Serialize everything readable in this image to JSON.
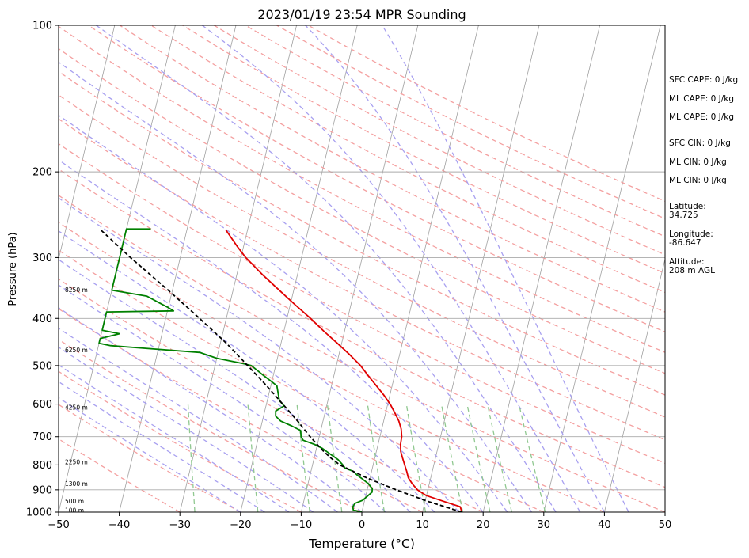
{
  "chart_data": {
    "type": "line",
    "title": "2023/01/19 23:54 MPR Sounding",
    "xlabel": "Temperature (°C)",
    "ylabel": "Pressure (hPa)",
    "xlim": [
      -50,
      50
    ],
    "ylim": [
      1000,
      100
    ],
    "y_scale": "log",
    "x_ticks": [
      -50,
      -40,
      -30,
      -20,
      -10,
      0,
      10,
      20,
      30,
      40,
      50
    ],
    "x_tick_labels": [
      "−50",
      "−40",
      "−30",
      "−20",
      "−10",
      "0",
      "10",
      "20",
      "30",
      "40",
      "50"
    ],
    "y_ticks": [
      1000,
      900,
      800,
      700,
      600,
      500,
      400,
      300,
      200,
      100
    ],
    "y_tick_labels": [
      "1000",
      "900",
      "800",
      "700",
      "600",
      "500",
      "400",
      "300",
      "200",
      "100"
    ],
    "grid": true,
    "colors": {
      "temperature": "#e00000",
      "dewpoint": "#008000",
      "parcel": "#000000",
      "dry_adiabat": "#f4a0a0",
      "moist_adiabat": "#a8a0f0",
      "mixing_ratio": "#90c890",
      "isotherm": "#a0a0a0",
      "grid": "#aaaaaa"
    },
    "series": [
      {
        "name": "Temperature",
        "points": [
          [
            1000,
            16.5
          ],
          [
            975,
            16.0
          ],
          [
            950,
            13.0
          ],
          [
            925,
            10.0
          ],
          [
            900,
            8.3
          ],
          [
            875,
            7.2
          ],
          [
            850,
            6.3
          ],
          [
            825,
            5.8
          ],
          [
            800,
            5.2
          ],
          [
            775,
            4.6
          ],
          [
            750,
            4.0
          ],
          [
            725,
            3.7
          ],
          [
            700,
            3.6
          ],
          [
            675,
            3.2
          ],
          [
            650,
            2.5
          ],
          [
            625,
            1.5
          ],
          [
            600,
            0.4
          ],
          [
            575,
            -1.0
          ],
          [
            550,
            -2.6
          ],
          [
            525,
            -4.3
          ],
          [
            500,
            -6.0
          ],
          [
            475,
            -8.2
          ],
          [
            450,
            -10.7
          ],
          [
            425,
            -13.4
          ],
          [
            400,
            -16.1
          ],
          [
            375,
            -19.2
          ],
          [
            350,
            -22.4
          ],
          [
            325,
            -25.8
          ],
          [
            300,
            -29.2
          ],
          [
            285,
            -31.0
          ],
          [
            263,
            -33.6
          ]
        ]
      },
      {
        "name": "Dewpoint",
        "points": [
          [
            1000,
            0.0
          ],
          [
            990,
            -1.5
          ],
          [
            975,
            -1.7
          ],
          [
            960,
            -1.5
          ],
          [
            945,
            -0.3
          ],
          [
            930,
            0.2
          ],
          [
            910,
            0.9
          ],
          [
            895,
            0.8
          ],
          [
            875,
            0.0
          ],
          [
            855,
            -1.2
          ],
          [
            840,
            -2.2
          ],
          [
            825,
            -3.0
          ],
          [
            812,
            -4.5
          ],
          [
            800,
            -5.0
          ],
          [
            780,
            -6.0
          ],
          [
            760,
            -7.5
          ],
          [
            740,
            -9.0
          ],
          [
            725,
            -10.6
          ],
          [
            712,
            -12.5
          ],
          [
            700,
            -13.0
          ],
          [
            680,
            -13.3
          ],
          [
            665,
            -15.0
          ],
          [
            650,
            -17.0
          ],
          [
            635,
            -18.0
          ],
          [
            620,
            -18.2
          ],
          [
            605,
            -17.0
          ],
          [
            590,
            -18.0
          ],
          [
            570,
            -18.5
          ],
          [
            550,
            -19.0
          ],
          [
            525,
            -21.5
          ],
          [
            500,
            -24.0
          ],
          [
            495,
            -25.5
          ],
          [
            483,
            -30.0
          ],
          [
            470,
            -33.0
          ],
          [
            460,
            -43.0
          ],
          [
            455,
            -48.0
          ],
          [
            450,
            -50.0
          ],
          [
            440,
            -50.0
          ],
          [
            430,
            -47.0
          ],
          [
            423,
            -50.0
          ],
          [
            400,
            -50.0
          ],
          [
            388,
            -50.0
          ],
          [
            386,
            -39.0
          ],
          [
            380,
            -40.0
          ],
          [
            370,
            -42.0
          ],
          [
            360,
            -44.0
          ],
          [
            350,
            -50.0
          ],
          [
            262,
            -50.0
          ],
          [
            262,
            -46.0
          ]
        ]
      },
      {
        "name": "Parcel",
        "points": [
          [
            1000,
            16.5
          ],
          [
            950,
            10.4
          ],
          [
            900,
            4.8
          ],
          [
            850,
            -0.6
          ],
          [
            800,
            -5.5
          ],
          [
            775,
            -7.2
          ],
          [
            750,
            -8.7
          ],
          [
            725,
            -10.1
          ],
          [
            700,
            -11.5
          ],
          [
            650,
            -14.2
          ],
          [
            600,
            -17.3
          ],
          [
            550,
            -20.7
          ],
          [
            500,
            -24.6
          ],
          [
            450,
            -29.0
          ],
          [
            400,
            -34.4
          ],
          [
            350,
            -40.7
          ],
          [
            300,
            -48.2
          ],
          [
            262,
            -54.4
          ]
        ]
      }
    ],
    "height_labels": [
      {
        "p": 350,
        "label": "8250 m"
      },
      {
        "p": 465,
        "label": "6250 m"
      },
      {
        "p": 610,
        "label": "4250 m"
      },
      {
        "p": 790,
        "label": "2250 m"
      },
      {
        "p": 875,
        "label": "1300 m"
      },
      {
        "p": 950,
        "label": "500 m"
      },
      {
        "p": 992,
        "label": "100 m"
      }
    ],
    "indices": [
      "SFC CAPE: 0 J/kg",
      "ML CAPE: 0 J/kg",
      "ML CAPE: 0 J/kg",
      "SFC CIN: 0 J/kg",
      "ML CIN: 0 J/kg",
      "ML CIN: 0 J/kg"
    ],
    "location": [
      {
        "label": "Latitude:",
        "value": "34.725"
      },
      {
        "label": "Longitude:",
        "value": "-86.647"
      },
      {
        "label": "Altitude:",
        "value": "208 m AGL"
      }
    ]
  }
}
